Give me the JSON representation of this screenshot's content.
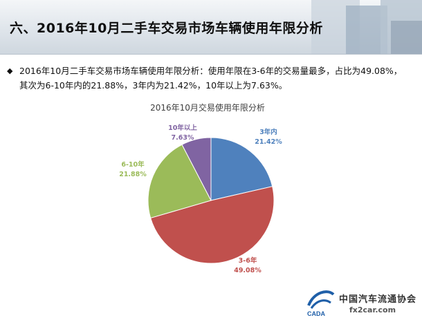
{
  "header": {
    "title": "六、2016年10月二手车交易市场车辆使用年限分析"
  },
  "summary": {
    "bullet_icon": "diamond-bullet-icon",
    "text": "2016年10月二手车交易市场车辆使用年限分析：使用年限在3-6年的交易量最多，占比为49.08%，其次为6-10年内的21.88%，3年内为21.42%，10年以上为7.63%。"
  },
  "chart_data": {
    "type": "pie",
    "title": "2016年10月交易使用年限分析",
    "slices": [
      {
        "label": "3年内",
        "value": 21.42,
        "pct_text": "21.42%",
        "color": "#4f81bd",
        "label_color": "#4f81bd"
      },
      {
        "label": "3-6年",
        "value": 49.08,
        "pct_text": "49.08%",
        "color": "#c0504d",
        "label_color": "#c0504d"
      },
      {
        "label": "6-10年",
        "value": 21.88,
        "pct_text": "21.88%",
        "color": "#9bbb59",
        "label_color": "#9bbb59"
      },
      {
        "label": "10年以上",
        "value": 7.63,
        "pct_text": "7.63%",
        "color": "#8064a2",
        "label_color": "#8064a2"
      }
    ]
  },
  "logo": {
    "icon": "cada-logo-icon",
    "brand_text": "CADA",
    "org_text": "中国汽车流通协会",
    "watermark": "fx2car.com"
  }
}
